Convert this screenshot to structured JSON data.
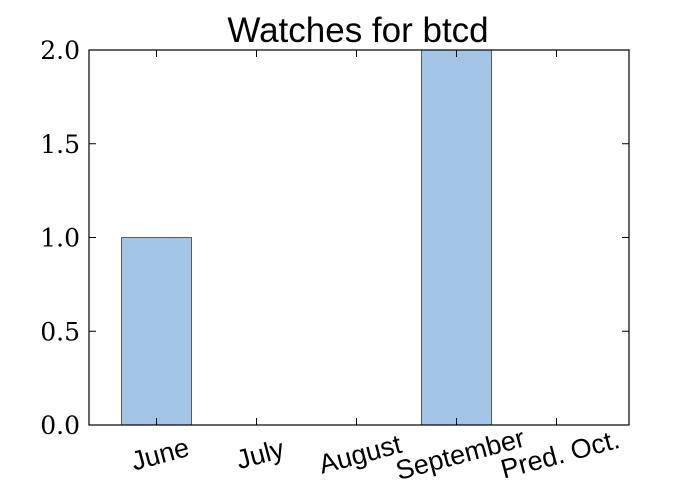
{
  "chart_data": {
    "type": "bar",
    "title": "Watches for btcd",
    "xlabel": "",
    "ylabel": "",
    "categories": [
      "June",
      "July",
      "August",
      "September",
      "Pred. Oct."
    ],
    "values": [
      1,
      0,
      0,
      2,
      0
    ],
    "ylim": [
      0,
      2.0
    ],
    "yticks": [
      "0.0",
      "0.5",
      "1.0",
      "1.5",
      "2.0"
    ],
    "grid": false,
    "bar_color": "#a2c4e5",
    "edge_color": "#555d66"
  }
}
